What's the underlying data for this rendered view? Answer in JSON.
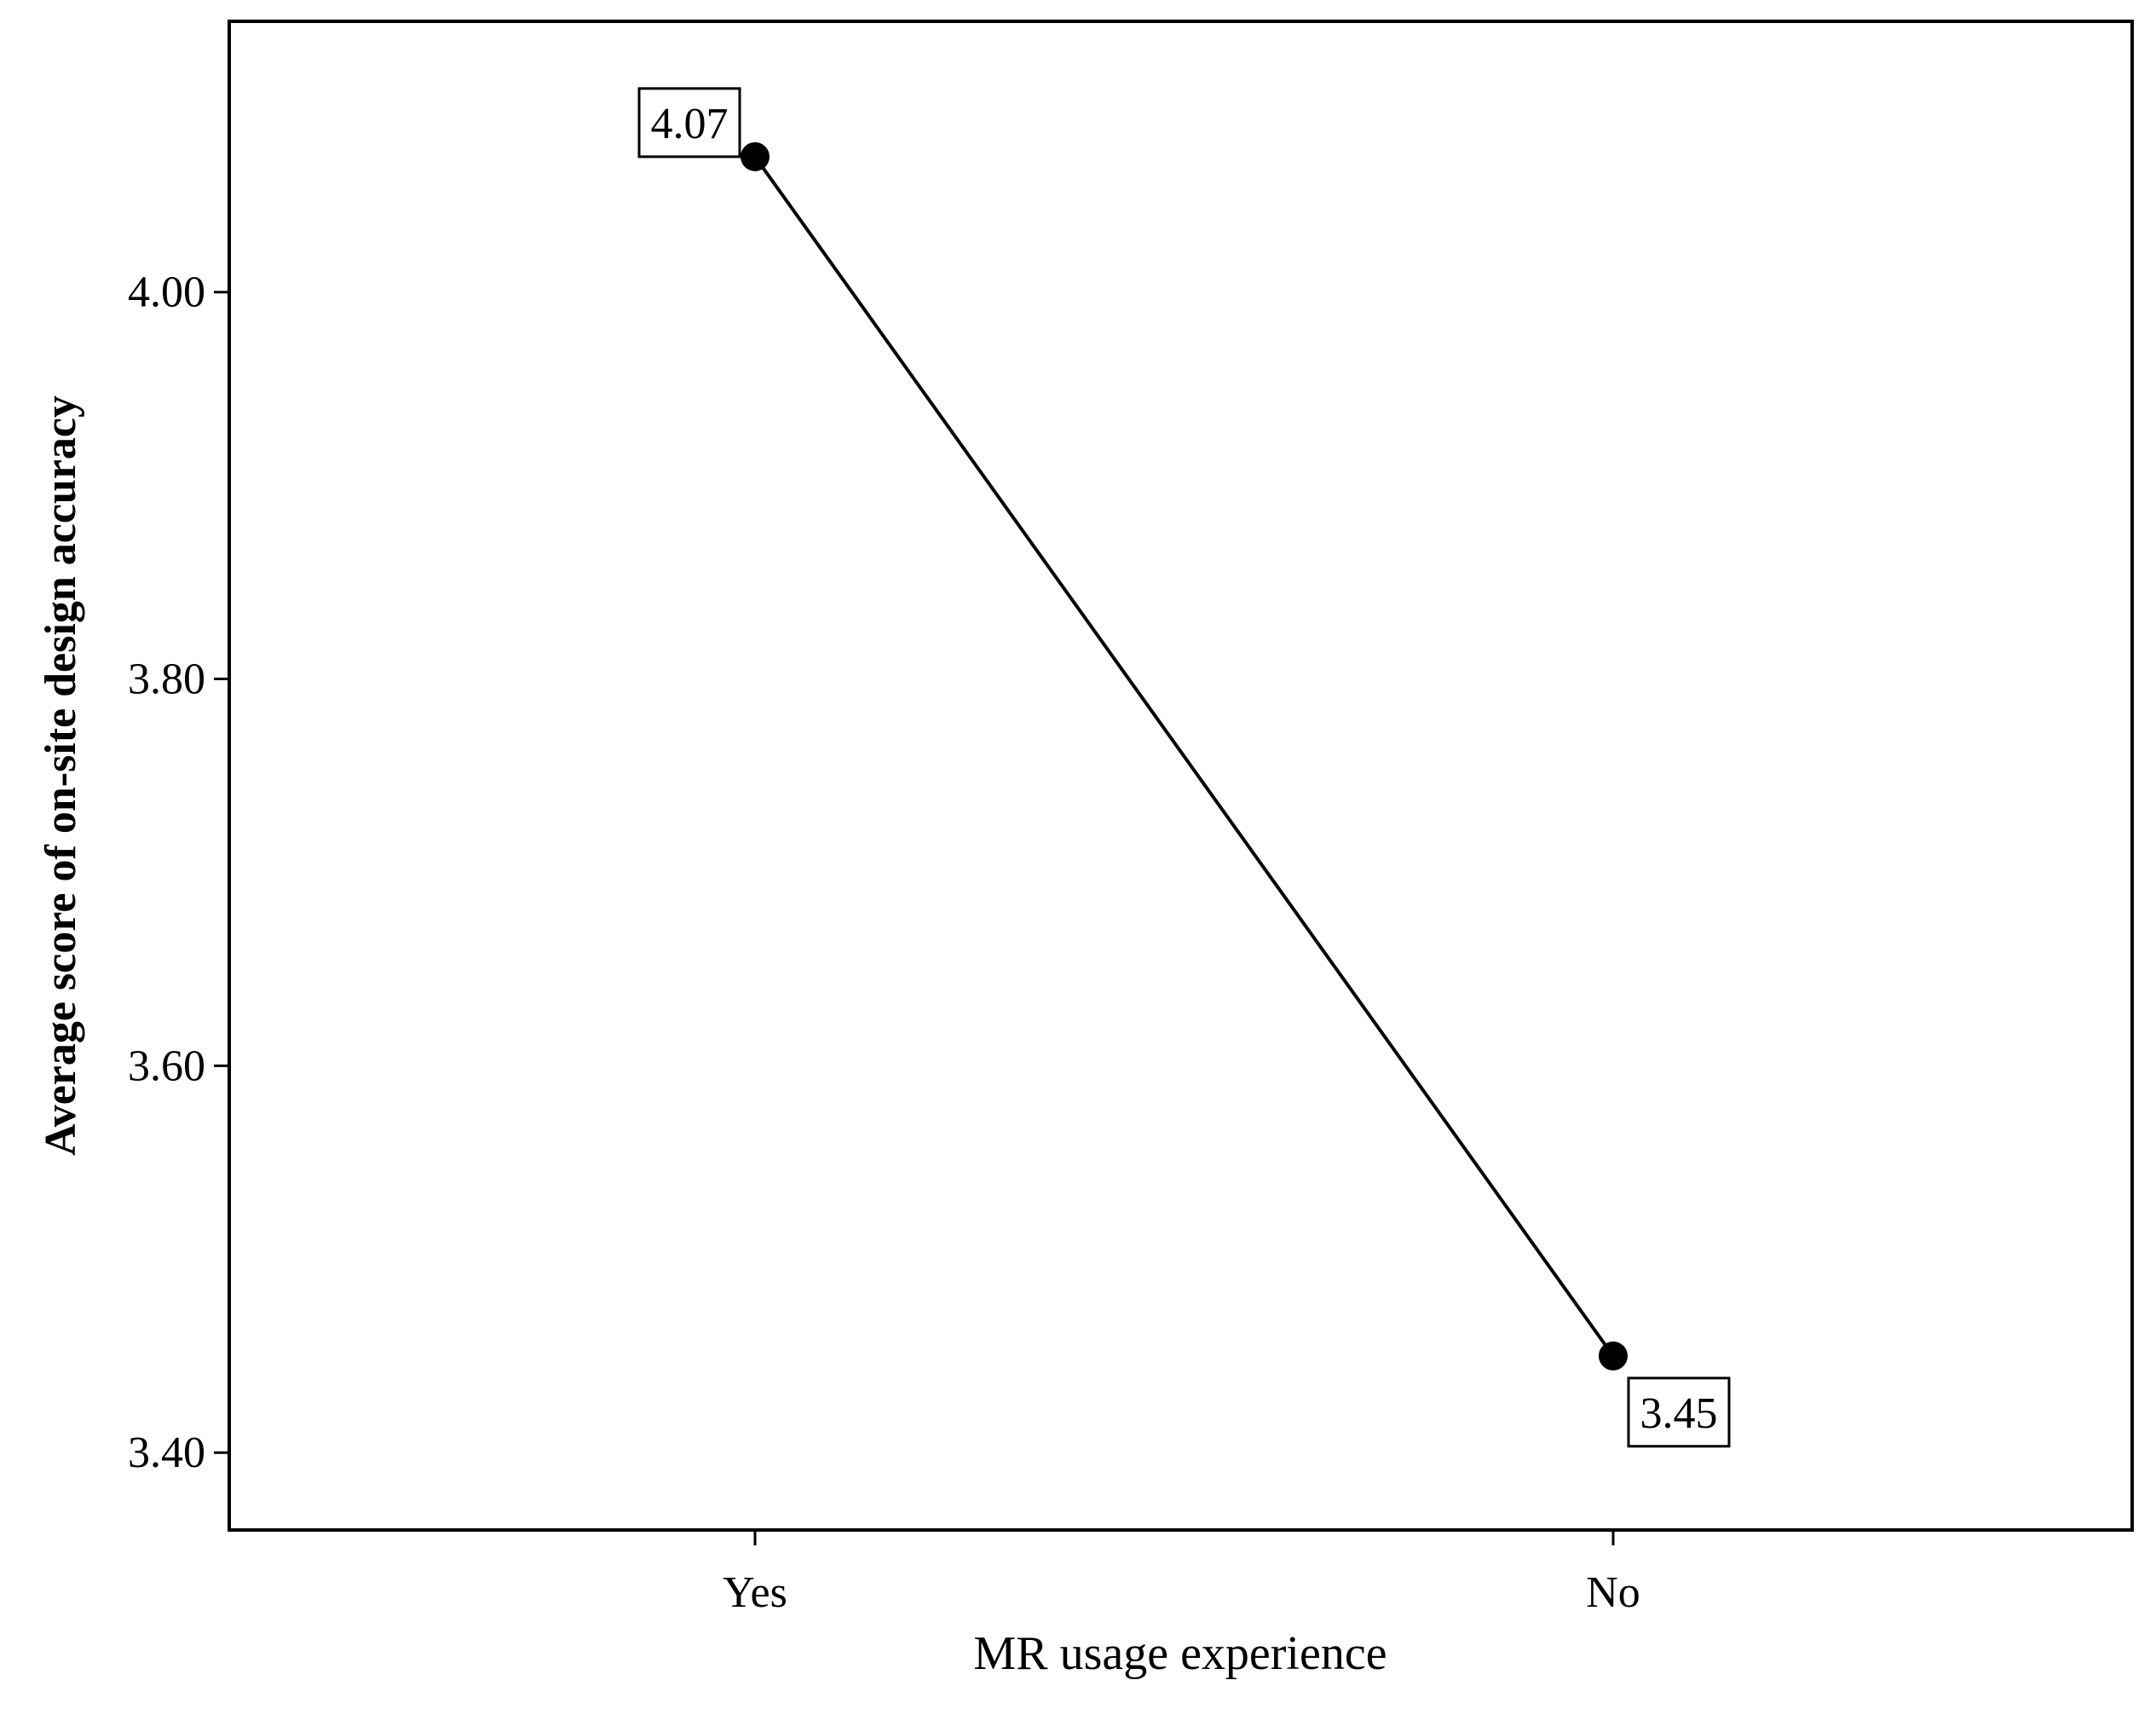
{
  "chart_data": {
    "type": "line",
    "title": "",
    "xlabel": "MR usage experience",
    "ylabel": "Average score of on-site design accuracy",
    "categories": [
      "Yes",
      "No"
    ],
    "series": [
      {
        "values": [
          4.07,
          3.45
        ]
      }
    ],
    "data_labels": [
      "4.07",
      "3.45"
    ],
    "yticks": [
      3.4,
      3.6,
      3.8,
      4.0
    ],
    "ytick_labels": [
      "3.40",
      "3.60",
      "3.80",
      "4.00"
    ],
    "ylim": [
      3.36,
      4.14
    ],
    "grid": false,
    "line_color": "#000000",
    "marker_color": "#000000"
  }
}
